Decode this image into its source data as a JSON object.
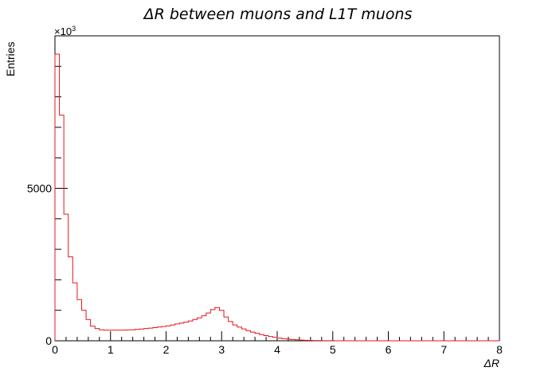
{
  "chart_data": {
    "type": "histogram",
    "title": "ΔR   between   muons   and   L1T   muons",
    "xlabel": "ΔR",
    "ylabel": "Entries",
    "y_multiplier": "×10",
    "y_multiplier_exp": "3",
    "xlim": [
      0,
      8
    ],
    "ylim": [
      0,
      10000
    ],
    "x_ticks": [
      0,
      1,
      2,
      3,
      4,
      5,
      6,
      7,
      8
    ],
    "x_tick_labels": [
      "0",
      "1",
      "2",
      "3",
      "4",
      "5",
      "6",
      "7",
      "8"
    ],
    "y_ticks": [
      0,
      5000
    ],
    "y_tick_labels": [
      "0",
      "5000"
    ],
    "bin_width": 0.08,
    "series": [
      {
        "color": "#e8141c",
        "values": [
          9400,
          7400,
          4150,
          2750,
          1900,
          1350,
          1000,
          700,
          480,
          400,
          360,
          350,
          350,
          350,
          350,
          350,
          355,
          360,
          375,
          385,
          400,
          415,
          430,
          450,
          470,
          490,
          520,
          550,
          580,
          610,
          650,
          700,
          750,
          820,
          910,
          1020,
          1090,
          1000,
          780,
          630,
          520,
          450,
          390,
          330,
          285,
          245,
          205,
          170,
          140,
          112,
          88,
          70,
          55,
          42,
          32,
          24,
          17,
          12,
          8,
          6,
          4,
          3,
          2,
          1,
          1,
          1,
          0,
          0,
          0,
          0,
          0,
          0,
          0,
          0,
          0,
          0,
          0,
          0,
          0,
          0,
          0,
          0,
          0,
          0,
          0,
          0,
          0,
          0,
          0,
          0,
          0,
          0,
          0,
          0,
          0,
          0,
          0,
          0,
          0,
          0
        ]
      }
    ]
  }
}
